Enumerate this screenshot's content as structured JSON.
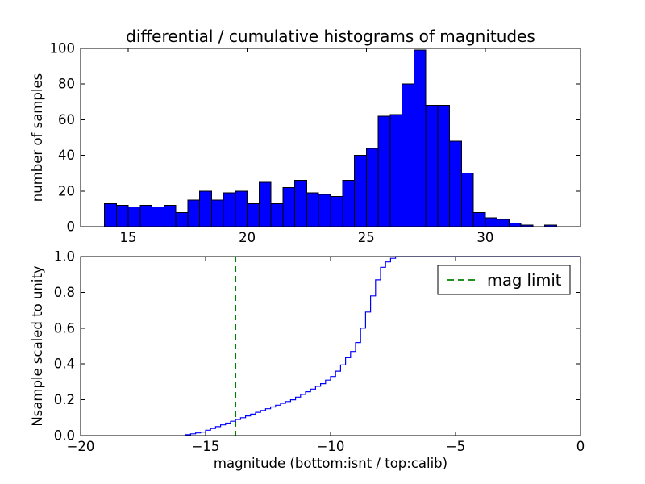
{
  "figure": {
    "background": "#ffffff"
  },
  "chart_data": [
    {
      "type": "bar",
      "role": "differential-histogram",
      "title": "differential / cumulative histograms of magnitudes",
      "xlabel": "",
      "ylabel": "number of samples",
      "xlim": [
        13,
        34
      ],
      "ylim": [
        0,
        100
      ],
      "grid": false,
      "xticks": {
        "values": [
          15,
          20,
          25,
          30
        ],
        "labels": [
          "15",
          "20",
          "25",
          "30"
        ]
      },
      "yticks": {
        "values": [
          0,
          20,
          40,
          60,
          80,
          100
        ],
        "labels": [
          "0",
          "20",
          "40",
          "60",
          "80",
          "100"
        ]
      },
      "bar_color": "#0000ff",
      "bar_edge_color": "#000000",
      "bin_start": 14.0,
      "bin_width": 0.5,
      "values": [
        13,
        12,
        11,
        12,
        11,
        12,
        8,
        15,
        20,
        15,
        19,
        20,
        13,
        25,
        13,
        22,
        26,
        19,
        18,
        17,
        26,
        40,
        44,
        62,
        63,
        80,
        99,
        68,
        68,
        48,
        30,
        8,
        5,
        4,
        2,
        1,
        0,
        1
      ]
    },
    {
      "type": "line",
      "role": "cumulative-step-histogram",
      "title": "",
      "xlabel": "magnitude (bottom:isnt / top:calib)",
      "ylabel": "Nsample scaled to unity",
      "xlim": [
        -20,
        0
      ],
      "ylim": [
        0,
        1.0
      ],
      "grid": false,
      "xticks": {
        "values": [
          -20,
          -15,
          -10,
          -5,
          0
        ],
        "labels": [
          "−20",
          "−15",
          "−10",
          "−5",
          "0"
        ]
      },
      "yticks": {
        "values": [
          0,
          0.2,
          0.4,
          0.6,
          0.8,
          1.0
        ],
        "labels": [
          "0.0",
          "0.2",
          "0.4",
          "0.6",
          "0.8",
          "1.0"
        ]
      },
      "line_color": "#0000ff",
      "vline": {
        "x": -13.8,
        "color": "#008000",
        "style": "dashed",
        "label": "mag limit"
      },
      "legend": {
        "position": "upper right",
        "entries": [
          "mag limit"
        ]
      },
      "step_points": [
        [
          -15.8,
          0.005
        ],
        [
          -15.6,
          0.01
        ],
        [
          -15.4,
          0.015
        ],
        [
          -15.2,
          0.02
        ],
        [
          -15.0,
          0.03
        ],
        [
          -14.8,
          0.04
        ],
        [
          -14.6,
          0.05
        ],
        [
          -14.4,
          0.06
        ],
        [
          -14.2,
          0.07
        ],
        [
          -14.0,
          0.08
        ],
        [
          -13.8,
          0.09
        ],
        [
          -13.6,
          0.1
        ],
        [
          -13.4,
          0.11
        ],
        [
          -13.2,
          0.12
        ],
        [
          -13.0,
          0.13
        ],
        [
          -12.8,
          0.14
        ],
        [
          -12.6,
          0.15
        ],
        [
          -12.4,
          0.16
        ],
        [
          -12.2,
          0.17
        ],
        [
          -12.0,
          0.18
        ],
        [
          -11.8,
          0.19
        ],
        [
          -11.6,
          0.2
        ],
        [
          -11.4,
          0.215
        ],
        [
          -11.2,
          0.23
        ],
        [
          -11.0,
          0.245
        ],
        [
          -10.8,
          0.26
        ],
        [
          -10.6,
          0.275
        ],
        [
          -10.4,
          0.29
        ],
        [
          -10.2,
          0.31
        ],
        [
          -10.0,
          0.33
        ],
        [
          -9.8,
          0.36
        ],
        [
          -9.6,
          0.395
        ],
        [
          -9.4,
          0.435
        ],
        [
          -9.2,
          0.47
        ],
        [
          -9.0,
          0.52
        ],
        [
          -8.8,
          0.6
        ],
        [
          -8.6,
          0.69
        ],
        [
          -8.4,
          0.78
        ],
        [
          -8.2,
          0.87
        ],
        [
          -8.0,
          0.94
        ],
        [
          -7.8,
          0.97
        ],
        [
          -7.6,
          0.99
        ],
        [
          -7.4,
          1.0
        ]
      ]
    }
  ]
}
